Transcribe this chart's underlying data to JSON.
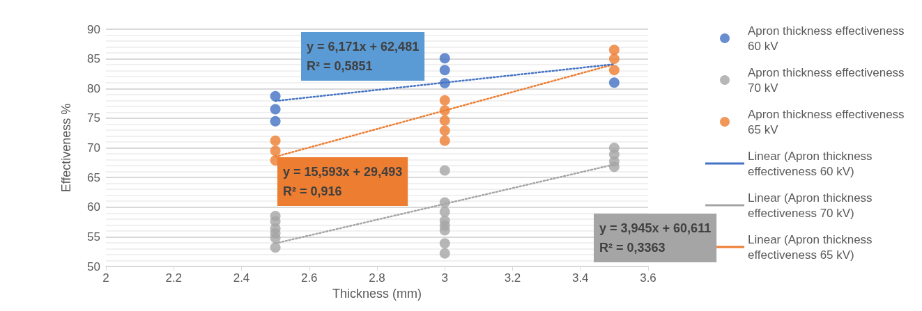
{
  "chart_data": {
    "type": "scatter",
    "xlabel": "Thickness (mm)",
    "ylabel": "Effectiveness %",
    "xlim": [
      2,
      3.6
    ],
    "xticks": [
      2,
      2.2,
      2.4,
      2.6,
      2.8,
      3,
      3.2,
      3.4,
      3.6
    ],
    "ylim": [
      50,
      90
    ],
    "yticks": [
      50,
      55,
      60,
      65,
      70,
      75,
      80,
      85,
      90
    ],
    "grid": "y",
    "legend": "right",
    "marker": "circle",
    "series": [
      {
        "name": "Apron thickness effectiveness 60 kV",
        "color": "#4472c4",
        "x": [
          2.5,
          2.5,
          2.5,
          3,
          3,
          3,
          3.5
        ],
        "values": [
          78.7,
          76.5,
          74.5,
          85.1,
          83.1,
          80.9,
          81.0
        ]
      },
      {
        "name": "Apron thickness effectiveness 70 kV",
        "color": "#a5a5a5",
        "x": [
          2.5,
          2.5,
          2.5,
          2.5,
          2.5,
          2.5,
          3,
          3,
          3,
          3,
          3,
          3,
          3,
          3,
          3.5,
          3.5,
          3.5,
          3.5
        ],
        "values": [
          58.5,
          57.6,
          56.4,
          55.6,
          54.8,
          53.2,
          66.2,
          60.8,
          59.2,
          57.7,
          56.9,
          56.1,
          53.9,
          52.2,
          70.0,
          68.9,
          67.7,
          66.8
        ]
      },
      {
        "name": "Apron thickness effectiveness 65 kV",
        "color": "#ed7d31",
        "x": [
          2.5,
          2.5,
          2.5,
          3,
          3,
          3,
          3,
          3,
          3.5,
          3.5,
          3.5
        ],
        "values": [
          71.2,
          69.5,
          67.9,
          78.0,
          76.3,
          74.6,
          72.9,
          71.2,
          86.5,
          85.0,
          83.1
        ]
      },
      {
        "name": "Linear (Apron thickness effectiveness 60 kV)",
        "type": "line",
        "color": "#4472c4",
        "line_style": "dotted",
        "marker": "none",
        "x": [
          2.5,
          3.5
        ],
        "values": [
          77.9,
          84.1
        ]
      },
      {
        "name": "Linear (Apron thickness effectiveness 70 kV)",
        "type": "line",
        "color": "#a5a5a5",
        "line_style": "dotted",
        "marker": "none",
        "x": [
          2.5,
          3.5
        ],
        "values": [
          53.9,
          67.2
        ]
      },
      {
        "name": "Linear (Apron thickness effectiveness 65 kV)",
        "type": "line",
        "color": "#ed7d31",
        "line_style": "dotted",
        "marker": "none",
        "x": [
          2.5,
          3.5
        ],
        "values": [
          68.5,
          84.1
        ]
      }
    ],
    "annotations": [
      "y = 6,171x + 62,481\nR² = 0,5851",
      "y = 15,593x + 29,493\nR² = 0,916",
      "y = 3,945x + 60,611\nR² = 0,3363"
    ]
  }
}
